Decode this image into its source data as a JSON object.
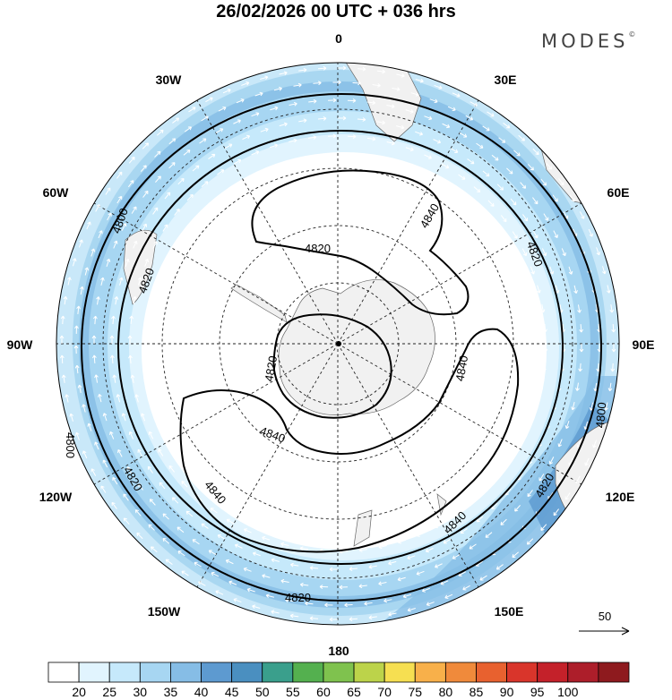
{
  "title": "26/02/2026  00 UTC  + 036 hrs",
  "brand": "MODES",
  "brand_mark": "©",
  "map": {
    "projection": "polar-stereographic-south",
    "meridian_labels": [
      {
        "text": "0",
        "lon": 0
      },
      {
        "text": "30E",
        "lon": 30
      },
      {
        "text": "60E",
        "lon": 60
      },
      {
        "text": "90E",
        "lon": 90
      },
      {
        "text": "120E",
        "lon": 120
      },
      {
        "text": "150E",
        "lon": 150
      },
      {
        "text": "180",
        "lon": 180
      },
      {
        "text": "150W",
        "lon": -150
      },
      {
        "text": "120W",
        "lon": -120
      },
      {
        "text": "90W",
        "lon": -90
      },
      {
        "text": "60W",
        "lon": -60
      },
      {
        "text": "30W",
        "lon": -30
      }
    ],
    "contour_labels": [
      "4800",
      "4820",
      "4840",
      "4820",
      "4800",
      "4820",
      "4840",
      "4820",
      "4840",
      "4820",
      "4840",
      "4800",
      "4820",
      "4840",
      "4820"
    ],
    "vector_reference": "50"
  },
  "colorbar": {
    "ticks": [
      "20",
      "25",
      "30",
      "35",
      "40",
      "45",
      "50",
      "55",
      "60",
      "65",
      "70",
      "75",
      "80",
      "85",
      "90",
      "95",
      "100"
    ],
    "colors": [
      "#ffffff",
      "#e1f4fe",
      "#c6e9fb",
      "#a7d6f2",
      "#86bde6",
      "#5d9ad0",
      "#4a8fc0",
      "#3a9f8c",
      "#54b04f",
      "#7fc24e",
      "#bcd34a",
      "#f6df51",
      "#f8b04a",
      "#f08a3b",
      "#e8612f",
      "#d9352b",
      "#c4212a",
      "#ad1e2a",
      "#8e1a1e"
    ]
  }
}
